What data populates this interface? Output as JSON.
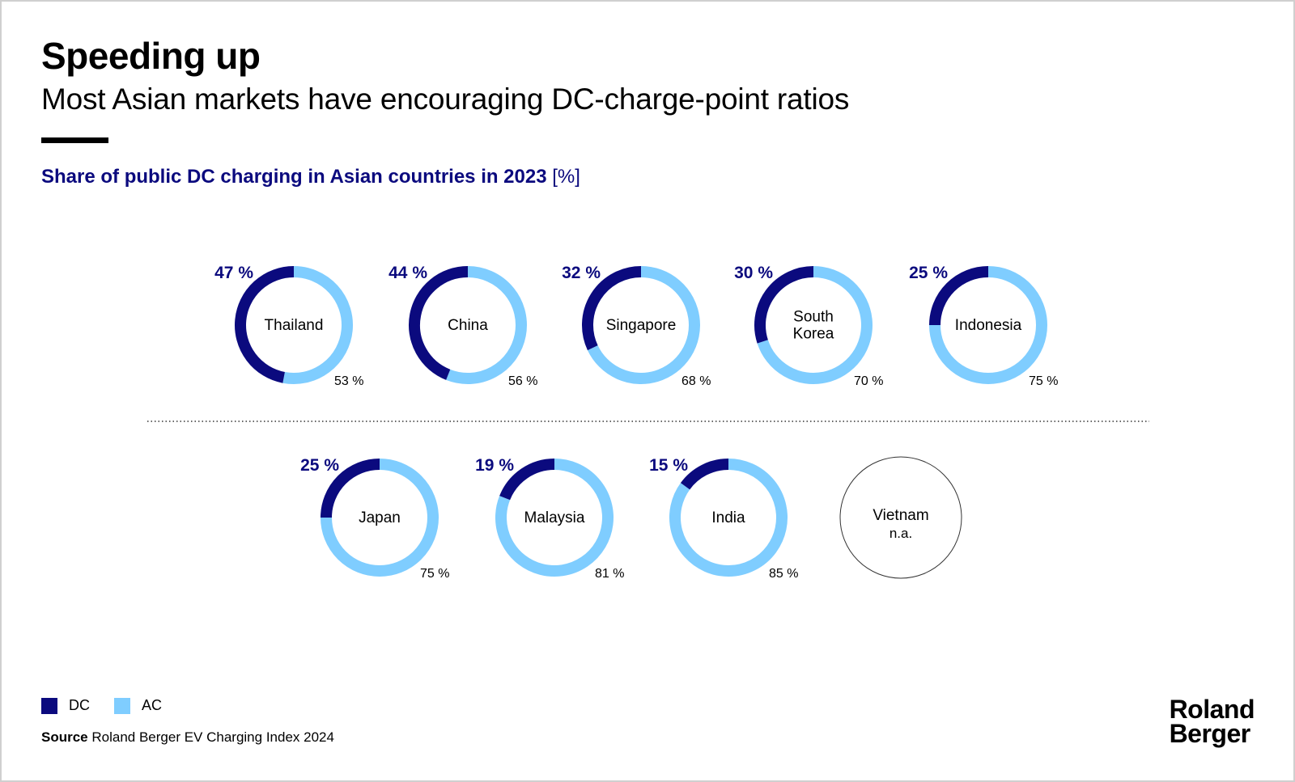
{
  "header": {
    "title": "Speeding up",
    "subtitle": "Most Asian markets have encouraging DC-charge-point ratios"
  },
  "chart_heading": {
    "text": "Share of public DC charging in Asian countries in 2023",
    "unit": "[%]"
  },
  "colors": {
    "dc": "#0b0a7e",
    "ac": "#7fcdff",
    "heading": "#0b0a7e"
  },
  "chart_data": {
    "type": "donut",
    "title": "Share of public DC charging in Asian countries in 2023 [%]",
    "series": [
      {
        "name": "DC"
      },
      {
        "name": "AC"
      }
    ],
    "rows": [
      {
        "row": 1,
        "items": [
          {
            "country": [
              "Thailand"
            ],
            "dc": 47,
            "ac": 53,
            "dc_label": "47 %",
            "ac_label": "53 %"
          },
          {
            "country": [
              "China"
            ],
            "dc": 44,
            "ac": 56,
            "dc_label": "44 %",
            "ac_label": "56 %"
          },
          {
            "country": [
              "Singapore"
            ],
            "dc": 32,
            "ac": 68,
            "dc_label": "32 %",
            "ac_label": "68 %"
          },
          {
            "country": [
              "South",
              "Korea"
            ],
            "dc": 30,
            "ac": 70,
            "dc_label": "30 %",
            "ac_label": "70 %"
          },
          {
            "country": [
              "Indonesia"
            ],
            "dc": 25,
            "ac": 75,
            "dc_label": "25 %",
            "ac_label": "75 %"
          }
        ]
      },
      {
        "row": 2,
        "items": [
          {
            "country": [
              "Japan"
            ],
            "dc": 25,
            "ac": 75,
            "dc_label": "25 %",
            "ac_label": "75 %"
          },
          {
            "country": [
              "Malaysia"
            ],
            "dc": 19,
            "ac": 81,
            "dc_label": "19 %",
            "ac_label": "81 %"
          },
          {
            "country": [
              "India"
            ],
            "dc": 15,
            "ac": 85,
            "dc_label": "15 %",
            "ac_label": "85 %"
          },
          {
            "country": [
              "Vietnam"
            ],
            "dc": null,
            "ac": null,
            "na_label": "n.a."
          }
        ]
      }
    ]
  },
  "legend": {
    "dc_label": "DC",
    "ac_label": "AC"
  },
  "source": {
    "label": "Source",
    "text": " Roland Berger EV Charging Index 2024"
  },
  "logo": {
    "line1": "Roland",
    "line2": "Berger"
  }
}
